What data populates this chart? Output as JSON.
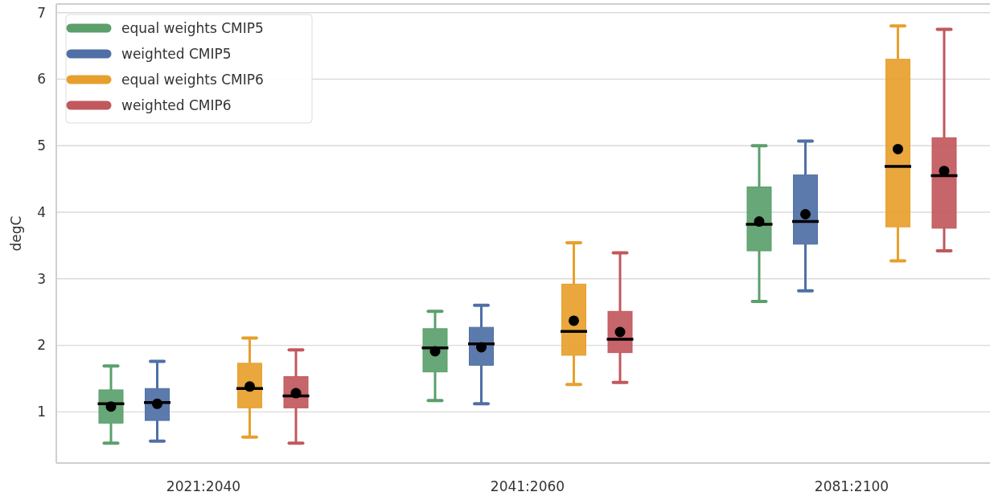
{
  "chart_data": {
    "type": "box",
    "ylabel": "degC",
    "categories": [
      "2021:2040",
      "2041:2060",
      "2081:2100"
    ],
    "ylim": [
      0.23,
      7.13
    ],
    "yticks": [
      1,
      2,
      3,
      4,
      5,
      6,
      7
    ],
    "grid": "y",
    "legend": "top left",
    "series": [
      {
        "name": "equal weights CMIP5",
        "color": "#5b9f6b",
        "boxes": [
          {
            "low": 0.53,
            "q1": 0.83,
            "median": 1.12,
            "q3": 1.33,
            "high": 1.69,
            "mean": 1.08
          },
          {
            "low": 1.17,
            "q1": 1.6,
            "median": 1.96,
            "q3": 2.25,
            "high": 2.51,
            "mean": 1.91
          },
          {
            "low": 2.66,
            "q1": 3.42,
            "median": 3.82,
            "q3": 4.38,
            "high": 5.0,
            "mean": 3.86
          }
        ]
      },
      {
        "name": "weighted CMIP5",
        "color": "#4f6fa6",
        "boxes": [
          {
            "low": 0.56,
            "q1": 0.87,
            "median": 1.14,
            "q3": 1.35,
            "high": 1.76,
            "mean": 1.12
          },
          {
            "low": 1.12,
            "q1": 1.7,
            "median": 2.02,
            "q3": 2.27,
            "high": 2.6,
            "mean": 1.97
          },
          {
            "low": 2.82,
            "q1": 3.52,
            "median": 3.86,
            "q3": 4.56,
            "high": 5.07,
            "mean": 3.97
          }
        ]
      },
      {
        "name": "equal weights CMIP6",
        "color": "#e7a02d",
        "boxes": [
          {
            "low": 0.62,
            "q1": 1.06,
            "median": 1.35,
            "q3": 1.73,
            "high": 2.11,
            "mean": 1.38
          },
          {
            "low": 1.41,
            "q1": 1.85,
            "median": 2.21,
            "q3": 2.92,
            "high": 3.54,
            "mean": 2.37
          },
          {
            "low": 3.27,
            "q1": 3.78,
            "median": 4.69,
            "q3": 6.3,
            "high": 6.8,
            "mean": 4.95
          }
        ]
      },
      {
        "name": "weighted CMIP6",
        "color": "#c1585d",
        "boxes": [
          {
            "low": 0.53,
            "q1": 1.06,
            "median": 1.24,
            "q3": 1.53,
            "high": 1.93,
            "mean": 1.28
          },
          {
            "low": 1.44,
            "q1": 1.89,
            "median": 2.09,
            "q3": 2.51,
            "high": 3.39,
            "mean": 2.2
          },
          {
            "low": 3.42,
            "q1": 3.76,
            "median": 4.55,
            "q3": 5.12,
            "high": 6.75,
            "mean": 4.62
          }
        ]
      }
    ]
  }
}
